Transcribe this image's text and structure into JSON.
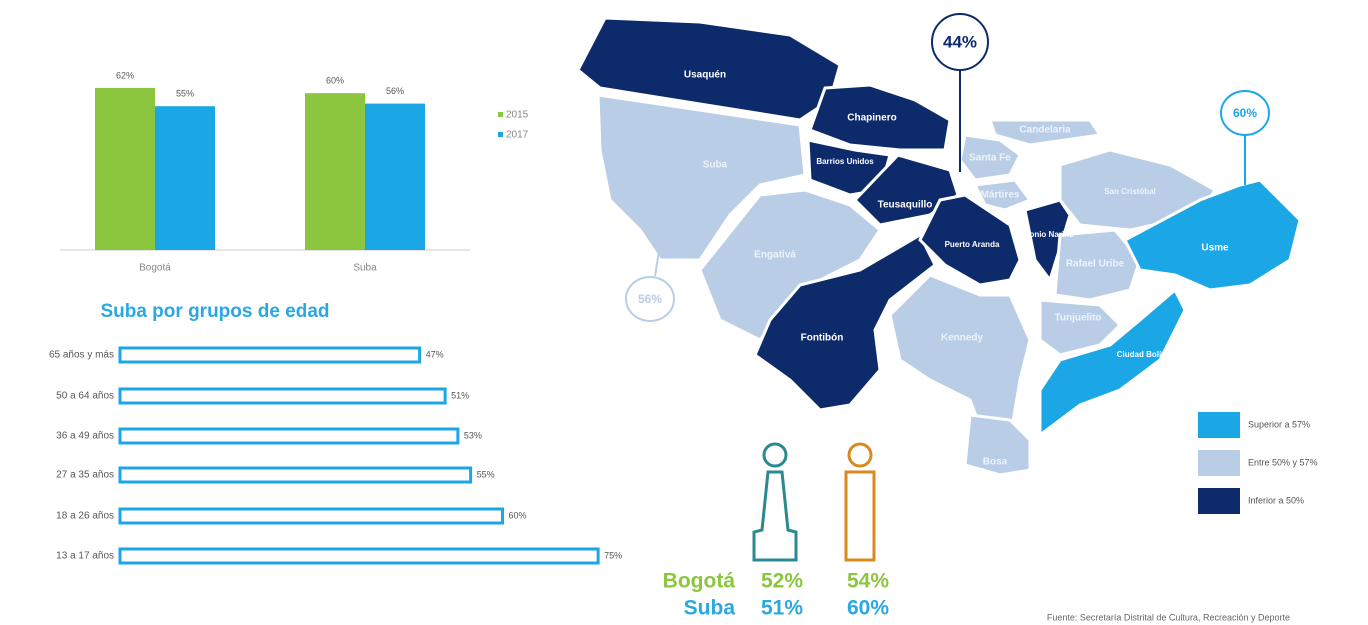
{
  "chart_data": [
    {
      "type": "bar",
      "categories": [
        "Bogotá",
        "Suba"
      ],
      "series": [
        {
          "name": "2015",
          "color": "#8cc63f",
          "values": [
            62,
            60
          ],
          "value_labels": [
            "62%",
            "60%"
          ]
        },
        {
          "name": "2017",
          "color": "#1ba6e6",
          "values": [
            55,
            56
          ],
          "value_labels": [
            "55%",
            "56%"
          ]
        }
      ],
      "ylim": [
        0,
        70
      ]
    },
    {
      "type": "barh",
      "title": "Suba por grupos de edad",
      "categories": [
        "65 años y más",
        "50 a 64 años",
        "36 a 49 años",
        "27 a 35 años",
        "18 a 26 años",
        "13 a 17 años"
      ],
      "values": [
        47,
        51,
        53,
        55,
        60,
        75
      ],
      "value_labels": [
        "47%",
        "51%",
        "53%",
        "55%",
        "60%",
        "75%"
      ],
      "color": "#1ba6e6",
      "xlim": [
        0,
        80
      ]
    }
  ],
  "map": {
    "regions": [
      {
        "name": "Usaquén",
        "color": "#0d2a6b"
      },
      {
        "name": "Chapinero",
        "color": "#0d2a6b"
      },
      {
        "name": "Suba",
        "color": "#b9cde6"
      },
      {
        "name": "Barrios Unidos",
        "color": "#0d2a6b"
      },
      {
        "name": "Teusaquillo",
        "color": "#0d2a6b"
      },
      {
        "name": "Engativá",
        "color": "#b9cde6"
      },
      {
        "name": "Fontibón",
        "color": "#0d2a6b"
      },
      {
        "name": "Puerto Aranda",
        "color": "#0d2a6b"
      },
      {
        "name": "Kennedy",
        "color": "#b9cde6"
      },
      {
        "name": "Bosa",
        "color": "#b9cde6"
      },
      {
        "name": "Antonio Nariño",
        "color": "#0d2a6b"
      },
      {
        "name": "Santa Fe",
        "color": "#b9cde6"
      },
      {
        "name": "Mártires",
        "color": "#b9cde6"
      },
      {
        "name": "Candelaria",
        "color": "#b9cde6"
      },
      {
        "name": "San Cristóbal",
        "color": "#b9cde6"
      },
      {
        "name": "Rafael Uribe",
        "color": "#b9cde6"
      },
      {
        "name": "Tunjuelito",
        "color": "#b9cde6"
      },
      {
        "name": "Usme",
        "color": "#1ba6e6"
      },
      {
        "name": "Ciudad Bolívar",
        "color": "#1ba6e6"
      }
    ],
    "callouts": [
      "44%",
      "60%",
      "56%"
    ],
    "legend": [
      {
        "label": "Superior a 57%",
        "color": "#1ba6e6"
      },
      {
        "label": "Entre 50% y 57%",
        "color": "#b9cde6"
      },
      {
        "label": "Inferior a 50%",
        "color": "#0d2a6b"
      }
    ]
  },
  "gender_stats": [
    {
      "label": "Bogotá",
      "values": [
        "52%",
        "54%"
      ]
    },
    {
      "label": "Suba",
      "values": [
        "51%",
        "60%"
      ]
    }
  ],
  "source": "Fuente: Secretaría Distrital de Cultura, Recreación y Deporte"
}
